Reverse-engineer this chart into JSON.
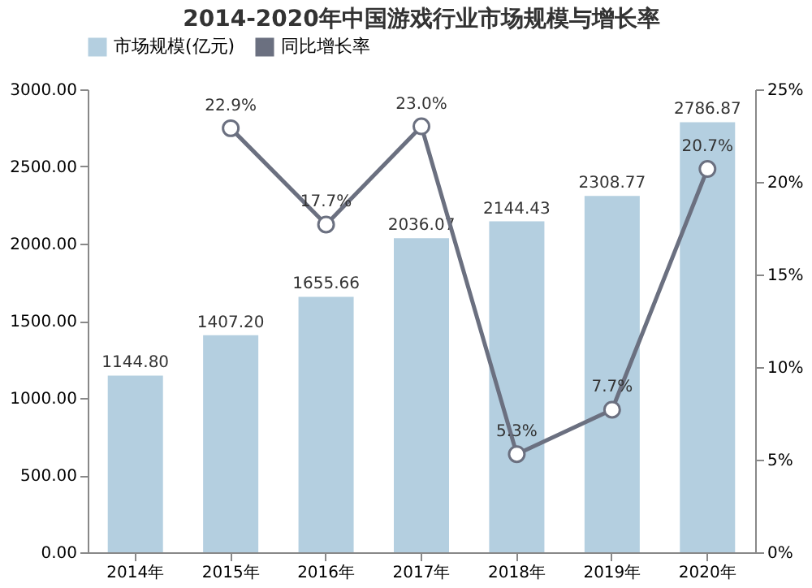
{
  "chart_data": {
    "type": "bar",
    "title": "2014-2020年中国游戏行业市场规模与增长率",
    "categories": [
      "2014年",
      "2015年",
      "2016年",
      "2017年",
      "2018年",
      "2019年",
      "2020年"
    ],
    "series": [
      {
        "name": "市场规模(亿元)",
        "color": "#b4cfe0",
        "values": [
          1144.8,
          1407.2,
          1655.66,
          2036.07,
          2144.43,
          2308.77,
          2786.87
        ],
        "value_labels": [
          "1144.80",
          "1407.20",
          "1655.66",
          "2036.07",
          "2144.43",
          "2308.77",
          "2786.87"
        ]
      },
      {
        "name": "同比增长率",
        "type": "line",
        "axis": "y2",
        "color": "#6b7080",
        "marker": "circle",
        "values": [
          null,
          22.9,
          17.7,
          23.0,
          5.3,
          7.7,
          20.7
        ],
        "value_labels": [
          null,
          "22.9%",
          "17.7%",
          "23.0%",
          "5.3%",
          "7.7%",
          "20.7%"
        ]
      }
    ],
    "ylim": [
      0,
      3000
    ],
    "yticks": [
      {
        "value": 0,
        "label": "0.00"
      },
      {
        "value": 500,
        "label": "500.00"
      },
      {
        "value": 1000,
        "label": "1000.00"
      },
      {
        "value": 1500,
        "label": "1500.00"
      },
      {
        "value": 2000,
        "label": "2000.00"
      },
      {
        "value": 2500,
        "label": "2500.00"
      },
      {
        "value": 3000,
        "label": "3000.00"
      }
    ],
    "y2lim": [
      0,
      25
    ],
    "y2ticks": [
      {
        "value": 0,
        "label": "0%"
      },
      {
        "value": 5,
        "label": "5%"
      },
      {
        "value": 10,
        "label": "10%"
      },
      {
        "value": 15,
        "label": "15%"
      },
      {
        "value": 20,
        "label": "20%"
      },
      {
        "value": 25,
        "label": "25%"
      }
    ],
    "legend": "top",
    "grid": false
  }
}
